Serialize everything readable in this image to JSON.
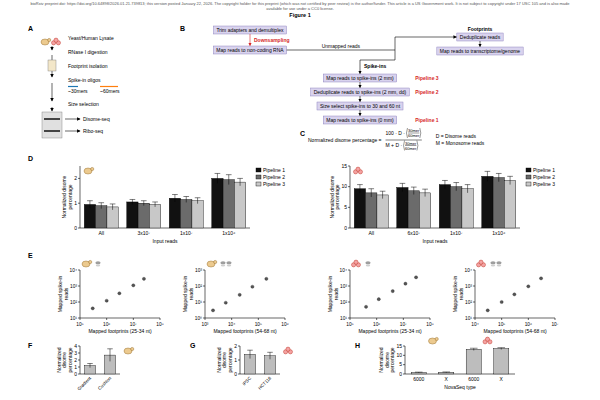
{
  "header": {
    "preprint_note": "bioRxiv preprint doi: https://doi.org/10.64898/2026.01.21.739813; this version posted January 22, 2026. The copyright holder for this preprint (which was not certified by peer review) is the author/funder. This article is a US Government work. It is not subject to copyright under 17 USC 105 and is also made available for use under a CC0 license.",
    "title": "Figure 1"
  },
  "panel_letters": [
    "A",
    "B",
    "C",
    "D",
    "E",
    "F",
    "G",
    "H"
  ],
  "panel_a": {
    "steps": [
      "Yeast/Human Lysate",
      "RNase I digestion",
      "Footprint isolation",
      "Spike-in oligos",
      "Size selection"
    ],
    "oligos": [
      "~30mers",
      "~60mers"
    ],
    "outputs": [
      "Disome-seq",
      "Ribo-seq"
    ]
  },
  "panel_b": {
    "preprocessing": [
      "Trim adapters and demultiplex",
      "Map reads to non-coding RNA"
    ],
    "downsampling": "Downsampling",
    "branch": "Unmapped reads",
    "footprints": {
      "title": "Footprints",
      "steps": [
        "Deduplicate reads",
        "Map reads to transcriptome/genome"
      ]
    },
    "spike_ins": {
      "title": "Spike-ins",
      "steps": [
        "Map reads to spike-ins (2 mm)",
        "Deduplicate reads to spike-ins (2 mm, dd)",
        "Size select spike-ins to 30 and 60 nt",
        "Map reads to spike-ins (0 mm)"
      ],
      "pipelines": [
        "Pipeline 3",
        "Pipeline 2",
        null,
        "Pipeline 1"
      ]
    }
  },
  "panel_c": {
    "lhs": "Normalized disome percentage =",
    "numerator": "100 · D ·",
    "denominator": "M + D ·",
    "ratio": [
      "30mer",
      "60mer"
    ],
    "definitions": [
      "D = Disome reads",
      "M = Monosome reads"
    ]
  },
  "chart_data": [
    {
      "type": "bar",
      "categories": [
        "All",
        "3x10⁷",
        "1x10⁷",
        "1x10⁶"
      ],
      "series": [
        {
          "name": "Pipeline 1",
          "color": "#111111",
          "values": [
            0.95,
            1.05,
            1.2,
            2.0
          ],
          "errors": [
            0.15,
            0.1,
            0.15,
            0.2
          ]
        },
        {
          "name": "Pipeline 2",
          "color": "#6b6b6b",
          "values": [
            0.9,
            1.0,
            1.15,
            1.95
          ],
          "errors": [
            0.12,
            0.1,
            0.12,
            0.2
          ]
        },
        {
          "name": "Pipeline 3",
          "color": "#c8c8c8",
          "values": [
            0.85,
            0.95,
            1.1,
            1.85
          ],
          "errors": [
            0.12,
            0.1,
            0.12,
            0.15
          ]
        }
      ],
      "ylim": [
        0,
        2.5
      ],
      "yticks": [
        0,
        1,
        2
      ],
      "y_label": "Normalized disome percentage",
      "x_label": "Input reads",
      "legend": "right"
    },
    {
      "type": "bar",
      "categories": [
        "All",
        "6x10⁷",
        "1x10⁷",
        "1x10⁶"
      ],
      "series": [
        {
          "name": "Pipeline 1",
          "color": "#111111",
          "values": [
            9.5,
            9.8,
            10.5,
            12.5
          ],
          "errors": [
            1.0,
            1.0,
            1.0,
            1.2
          ]
        },
        {
          "name": "Pipeline 2",
          "color": "#6b6b6b",
          "values": [
            8.5,
            9.0,
            10.0,
            12.2
          ],
          "errors": [
            1.0,
            0.9,
            1.0,
            1.0
          ]
        },
        {
          "name": "Pipeline 3",
          "color": "#c8c8c8",
          "values": [
            8.0,
            8.5,
            9.5,
            11.5
          ],
          "errors": [
            0.9,
            0.9,
            1.0,
            1.0
          ]
        }
      ],
      "ylim": [
        0,
        15
      ],
      "yticks": [
        0,
        5,
        10,
        15
      ],
      "y_label": "Normalized disome percentage",
      "x_label": "Input reads",
      "legend": "right"
    },
    {
      "type": "scatter",
      "log": true,
      "marker": "circle",
      "color": "#555555",
      "x": [
        300000,
        1000000,
        3000000,
        10000000,
        25000000
      ],
      "values": [
        40,
        120,
        350,
        1100,
        2800
      ],
      "xlim": [
        100000,
        100000000
      ],
      "xticks": [
        {
          "value": 100000,
          "label": "10⁵"
        },
        {
          "value": 1000000,
          "label": "10⁶"
        },
        {
          "value": 10000000,
          "label": "10⁷"
        },
        {
          "value": 100000000,
          "label": "10⁸"
        }
      ],
      "ylim": [
        10,
        10000
      ],
      "yticks": [
        {
          "value": 10,
          "label": "10¹"
        },
        {
          "value": 100,
          "label": "10²"
        },
        {
          "value": 1000,
          "label": "10³"
        },
        {
          "value": 10000,
          "label": "10⁴"
        }
      ],
      "x_label": "Mapped footprints (25-34 nt)",
      "y_label": "Mapped spike-in reads"
    },
    {
      "type": "scatter",
      "log": true,
      "marker": "circle",
      "color": "#555555",
      "x": [
        2000,
        6000,
        20000,
        60000,
        200000
      ],
      "values": [
        3,
        9,
        28,
        90,
        280
      ],
      "xlim": [
        1000,
        1000000
      ],
      "xticks": [
        {
          "value": 1000,
          "label": "10³"
        },
        {
          "value": 10000,
          "label": "10⁴"
        },
        {
          "value": 100000,
          "label": "10⁵"
        },
        {
          "value": 1000000,
          "label": "10⁶"
        }
      ],
      "ylim": [
        1,
        1000
      ],
      "yticks": [
        {
          "value": 1,
          "label": "10⁰"
        },
        {
          "value": 10,
          "label": "10¹"
        },
        {
          "value": 100,
          "label": "10²"
        },
        {
          "value": 1000,
          "label": "10³"
        }
      ],
      "x_label": "Mapped footprints (54-68 nt)",
      "y_label": "Mapped spike-in reads"
    },
    {
      "type": "scatter",
      "log": true,
      "marker": "circle",
      "color": "#555555",
      "x": [
        400000,
        1200000,
        4000000,
        12000000,
        30000000
      ],
      "values": [
        50,
        150,
        480,
        1400,
        3500
      ],
      "xlim": [
        100000,
        100000000
      ],
      "xticks": [
        {
          "value": 100000,
          "label": "10⁵"
        },
        {
          "value": 1000000,
          "label": "10⁶"
        },
        {
          "value": 10000000,
          "label": "10⁷"
        },
        {
          "value": 100000000,
          "label": "10⁸"
        }
      ],
      "ylim": [
        10,
        10000
      ],
      "yticks": [
        {
          "value": 10,
          "label": "10¹"
        },
        {
          "value": 100,
          "label": "10²"
        },
        {
          "value": 1000,
          "label": "10³"
        },
        {
          "value": 10000,
          "label": "10⁴"
        }
      ],
      "x_label": "Mapped footprints (25-34 nt)",
      "y_label": "Mapped spike-in reads"
    },
    {
      "type": "scatter",
      "log": true,
      "marker": "circle",
      "color": "#555555",
      "x": [
        30000,
        100000,
        300000,
        1000000,
        3000000
      ],
      "values": [
        30,
        100,
        300,
        950,
        3000
      ],
      "xlim": [
        10000,
        10000000
      ],
      "xticks": [
        {
          "value": 10000,
          "label": "10⁴"
        },
        {
          "value": 100000,
          "label": "10⁵"
        },
        {
          "value": 1000000,
          "label": "10⁶"
        },
        {
          "value": 10000000,
          "label": "10⁷"
        }
      ],
      "ylim": [
        10,
        10000
      ],
      "yticks": [
        {
          "value": 10,
          "label": "10¹"
        },
        {
          "value": 100,
          "label": "10²"
        },
        {
          "value": 1000,
          "label": "10³"
        },
        {
          "value": 10000,
          "label": "10⁴"
        }
      ],
      "x_label": "Mapped footprints (54-68 nt)",
      "y_label": "Mapped spike-in reads"
    },
    {
      "type": "bar",
      "categories": [
        "Gradient",
        "Cushion"
      ],
      "values": [
        1.2,
        2.7
      ],
      "errors": [
        0.3,
        0.9
      ],
      "color": "#bdbdbd",
      "ylim": [
        0,
        4
      ],
      "yticks": [
        0,
        1,
        2,
        3,
        4
      ],
      "y_label": "Normalized disome percentage"
    },
    {
      "type": "bar",
      "categories": [
        "iPSC",
        "HCT116"
      ],
      "values": [
        1.4,
        1.3
      ],
      "errors": [
        0.3,
        0.25
      ],
      "color": "#bdbdbd",
      "ylim": [
        0,
        2
      ],
      "yticks": [
        0,
        1,
        2
      ],
      "y_label": "Normalized disome percentage"
    },
    {
      "type": "bar",
      "categories": [
        "6000",
        "X",
        "6000",
        "X"
      ],
      "values": [
        0.8,
        0.9,
        13.2,
        13.6
      ],
      "errors": [
        0.2,
        0.2,
        0.6,
        0.5
      ],
      "color": "#bdbdbd",
      "ylim": [
        0,
        15
      ],
      "yticks": [
        0,
        5,
        10,
        15
      ],
      "y_label": "Normalized disome percentage",
      "x_label": "NovaSeq type"
    }
  ]
}
